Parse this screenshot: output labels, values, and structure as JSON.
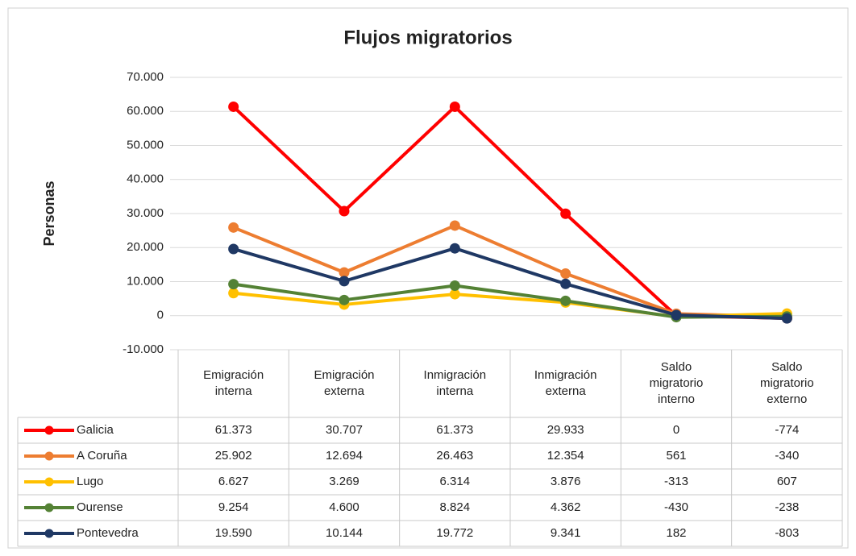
{
  "chart_data": {
    "type": "line",
    "title": "Flujos migratorios",
    "y_label": "Personas",
    "categories": [
      "Emigración interna",
      "Emigración externa",
      "Inmigración interna",
      "Inmigración externa",
      "Saldo migratorio interno",
      "Saldo migratorio externo"
    ],
    "ylim": [
      -10000,
      70000
    ],
    "yticks": [
      {
        "value": -10000,
        "label": "-10.000"
      },
      0,
      {
        "value": 10000,
        "label": "10.000"
      },
      {
        "value": 20000,
        "label": "20.000"
      },
      {
        "value": 30000,
        "label": "30.000"
      },
      {
        "value": 40000,
        "label": "40.000"
      },
      {
        "value": 50000,
        "label": "50.000"
      },
      {
        "value": 60000,
        "label": "60.000"
      },
      {
        "value": 70000,
        "label": "70.000"
      }
    ],
    "grid": true,
    "series": [
      {
        "name": "Galicia",
        "color": "#ff0000",
        "values": [
          61373,
          30707,
          61373,
          29933,
          0,
          -774
        ],
        "value_labels": [
          "61.373",
          "30.707",
          "61.373",
          "29.933",
          "0",
          "-774"
        ]
      },
      {
        "name": "A Coruña",
        "color": "#ed7d31",
        "values": [
          25902,
          12694,
          26463,
          12354,
          561,
          -340
        ],
        "value_labels": [
          "25.902",
          "12.694",
          "26.463",
          "12.354",
          "561",
          "-340"
        ]
      },
      {
        "name": "Lugo",
        "color": "#ffc000",
        "values": [
          6627,
          3269,
          6314,
          3876,
          -313,
          607
        ],
        "value_labels": [
          "6.627",
          "3.269",
          "6.314",
          "3.876",
          "-313",
          "607"
        ]
      },
      {
        "name": "Ourense",
        "color": "#548235",
        "values": [
          9254,
          4600,
          8824,
          4362,
          -430,
          -238
        ],
        "value_labels": [
          "9.254",
          "4.600",
          "8.824",
          "4.362",
          "-430",
          "-238"
        ]
      },
      {
        "name": "Pontevedra",
        "color": "#1f3864",
        "values": [
          19590,
          10144,
          19772,
          9341,
          182,
          -803
        ],
        "value_labels": [
          "19.590",
          "10.144",
          "19.772",
          "9.341",
          "182",
          "-803"
        ]
      }
    ]
  }
}
